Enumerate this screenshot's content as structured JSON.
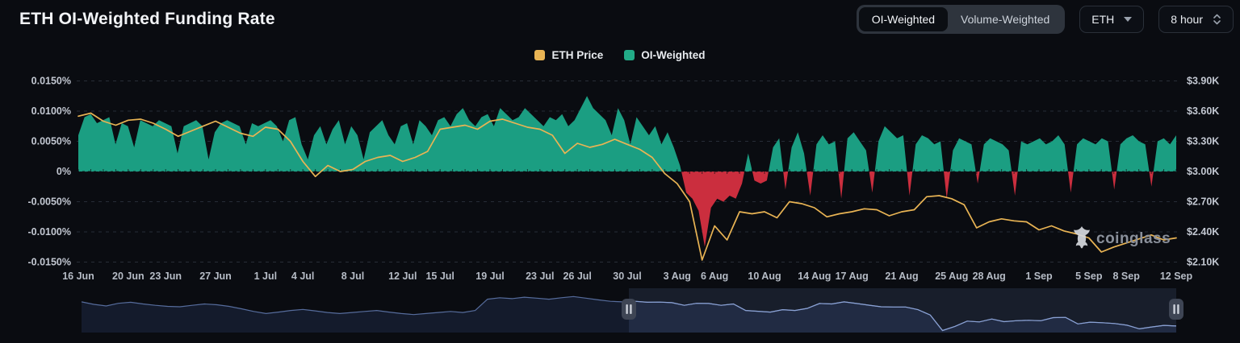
{
  "header": {
    "title": "ETH OI-Weighted Funding Rate"
  },
  "controls": {
    "mode_toggle": {
      "options": [
        "OI-Weighted",
        "Volume-Weighted"
      ],
      "active": "OI-Weighted"
    },
    "symbol_select": {
      "value": "ETH"
    },
    "interval_select": {
      "value": "8 hour"
    }
  },
  "legend": [
    {
      "label": "ETH Price",
      "color": "#e9b454"
    },
    {
      "label": "OI-Weighted",
      "color": "#22ab87"
    }
  ],
  "watermark": {
    "text": "coinglass"
  },
  "colors": {
    "background": "#0a0c11",
    "positive": "#1b9e82",
    "negative": "#cb2e3e",
    "price_line": "#e9b454",
    "grid": "#272d37",
    "axis_text": "#c3c8d2",
    "x_axis_text": "#b6bcc6",
    "nav_line": "#566c9c",
    "nav_line_selected": "#8ba2d4",
    "nav_fill": "#141b2c",
    "nav_selection": "rgba(124,154,222,0.13)",
    "handle": "#3e4554",
    "handle_bars": "#ccd1da",
    "watermark_text": "#8a909b",
    "watermark_logo": "#d7dade"
  },
  "chart_data": {
    "type": "area",
    "title": "ETH OI-Weighted Funding Rate",
    "x_start": "16 Jun",
    "x_end": "12 Sep",
    "x_days_span": 88,
    "x_ticks": [
      {
        "label": "16 Jun",
        "day": 0
      },
      {
        "label": "20 Jun",
        "day": 4
      },
      {
        "label": "23 Jun",
        "day": 7
      },
      {
        "label": "27 Jun",
        "day": 11
      },
      {
        "label": "1 Jul",
        "day": 15
      },
      {
        "label": "4 Jul",
        "day": 18
      },
      {
        "label": "8 Jul",
        "day": 22
      },
      {
        "label": "12 Jul",
        "day": 26
      },
      {
        "label": "15 Jul",
        "day": 29
      },
      {
        "label": "19 Jul",
        "day": 33
      },
      {
        "label": "23 Jul",
        "day": 37
      },
      {
        "label": "26 Jul",
        "day": 40
      },
      {
        "label": "30 Jul",
        "day": 44
      },
      {
        "label": "3 Aug",
        "day": 48
      },
      {
        "label": "6 Aug",
        "day": 51
      },
      {
        "label": "10 Aug",
        "day": 55
      },
      {
        "label": "14 Aug",
        "day": 59
      },
      {
        "label": "17 Aug",
        "day": 62
      },
      {
        "label": "21 Aug",
        "day": 66
      },
      {
        "label": "25 Aug",
        "day": 70
      },
      {
        "label": "28 Aug",
        "day": 73
      },
      {
        "label": "1 Sep",
        "day": 77
      },
      {
        "label": "5 Sep",
        "day": 81
      },
      {
        "label": "8 Sep",
        "day": 84
      },
      {
        "label": "12 Sep",
        "day": 88
      }
    ],
    "y_left": {
      "title": "Funding Rate",
      "unit": "%",
      "tick_labels": [
        "0.0150%",
        "0.0100%",
        "0.0050%",
        "0%",
        "-0.0050%",
        "-0.0100%",
        "-0.0150%"
      ],
      "tick_values": [
        0.015,
        0.01,
        0.005,
        0,
        -0.005,
        -0.01,
        -0.015
      ],
      "range": [
        -0.0165,
        0.0165
      ]
    },
    "y_right": {
      "title": "ETH Price",
      "unit": "$K",
      "tick_labels": [
        "$3.90K",
        "$3.60K",
        "$3.30K",
        "$3.00K",
        "$2.70K",
        "$2.40K",
        "$2.10K"
      ],
      "tick_values": [
        3.9,
        3.6,
        3.3,
        3.0,
        2.7,
        2.4,
        2.1
      ],
      "range": [
        2.01,
        3.99
      ]
    },
    "grid": "dashed-horizontal",
    "legend_position": "top-center",
    "series": [
      {
        "name": "OI-Weighted",
        "type": "area",
        "unit": "%",
        "points_per_day": 2,
        "color_positive": "#1b9e82",
        "color_negative": "#cb2e3e",
        "values": [
          0.006,
          0.009,
          0.0095,
          0.008,
          0.0085,
          0.009,
          0.0045,
          0.008,
          0.0075,
          0.004,
          0.0085,
          0.008,
          0.0075,
          0.0085,
          0.008,
          0.0075,
          0.003,
          0.0075,
          0.008,
          0.0085,
          0.0075,
          0.002,
          0.0065,
          0.008,
          0.0085,
          0.008,
          0.0075,
          0.0045,
          0.008,
          0.0075,
          0.008,
          0.0085,
          0.0075,
          0.005,
          0.0085,
          0.009,
          0.0045,
          0.002,
          0.006,
          0.0075,
          0.0045,
          0.007,
          0.0085,
          0.0045,
          0.0075,
          0.006,
          0.002,
          0.0065,
          0.0075,
          0.0085,
          0.006,
          0.0045,
          0.0075,
          0.008,
          0.0045,
          0.0085,
          0.0075,
          0.006,
          0.0085,
          0.009,
          0.0075,
          0.0095,
          0.0105,
          0.0085,
          0.0075,
          0.009,
          0.0095,
          0.0075,
          0.0105,
          0.0095,
          0.0085,
          0.009,
          0.0105,
          0.0095,
          0.0085,
          0.0075,
          0.009,
          0.0085,
          0.0095,
          0.0075,
          0.0085,
          0.0105,
          0.0125,
          0.0105,
          0.0095,
          0.0085,
          0.006,
          0.0105,
          0.0085,
          0.0045,
          0.009,
          0.0075,
          0.006,
          0.0075,
          0.0045,
          0.0065,
          0.004,
          0.001,
          -0.0035,
          -0.0045,
          -0.0065,
          -0.0125,
          -0.006,
          -0.0045,
          -0.005,
          -0.004,
          -0.0045,
          -0.002,
          0.003,
          -0.0015,
          -0.002,
          -0.0015,
          0.004,
          0.0055,
          -0.003,
          0.004,
          0.0065,
          0.003,
          -0.004,
          0.0045,
          0.006,
          0.0045,
          0.005,
          -0.0045,
          0.0055,
          0.0065,
          0.005,
          0.0035,
          -0.0035,
          0.005,
          0.0075,
          0.0065,
          0.0055,
          0.006,
          -0.004,
          0.0045,
          0.006,
          0.0055,
          0.0045,
          0.005,
          -0.0045,
          0.0035,
          0.0055,
          0.005,
          0.0045,
          -0.002,
          0.0045,
          0.0055,
          0.005,
          0.0045,
          0.0035,
          -0.004,
          0.005,
          0.0045,
          0.005,
          0.0055,
          0.0045,
          0.005,
          0.006,
          0.0045,
          -0.0035,
          0.0045,
          0.0055,
          0.005,
          0.0045,
          0.0055,
          0.005,
          -0.003,
          0.0045,
          0.0055,
          0.006,
          0.005,
          0.0045,
          -0.0025,
          0.005,
          0.0055,
          0.0045,
          0.006
        ]
      },
      {
        "name": "ETH Price",
        "type": "line",
        "unit": "$K",
        "points_per_day": 1,
        "color": "#e9b454",
        "values": [
          3.55,
          3.58,
          3.5,
          3.46,
          3.51,
          3.52,
          3.48,
          3.42,
          3.35,
          3.4,
          3.45,
          3.5,
          3.44,
          3.38,
          3.35,
          3.44,
          3.42,
          3.3,
          3.1,
          2.95,
          3.06,
          3.0,
          3.02,
          3.1,
          3.14,
          3.16,
          3.1,
          3.14,
          3.2,
          3.42,
          3.44,
          3.46,
          3.42,
          3.5,
          3.52,
          3.48,
          3.44,
          3.42,
          3.36,
          3.18,
          3.28,
          3.24,
          3.27,
          3.32,
          3.27,
          3.22,
          3.14,
          2.98,
          2.88,
          2.7,
          2.12,
          2.46,
          2.32,
          2.6,
          2.58,
          2.6,
          2.54,
          2.7,
          2.68,
          2.64,
          2.55,
          2.58,
          2.6,
          2.63,
          2.62,
          2.56,
          2.6,
          2.62,
          2.75,
          2.76,
          2.73,
          2.67,
          2.44,
          2.5,
          2.53,
          2.51,
          2.5,
          2.42,
          2.46,
          2.41,
          2.38,
          2.34,
          2.2,
          2.25,
          2.29,
          2.33,
          2.37,
          2.32,
          2.34
        ]
      }
    ],
    "navigator": {
      "description": "mini price history brush, right half selected",
      "selection_start_frac": 0.5,
      "selection_end_frac": 1.0,
      "values": [
        3.52,
        3.4,
        3.32,
        3.45,
        3.5,
        3.42,
        3.35,
        3.3,
        3.28,
        3.35,
        3.42,
        3.38,
        3.3,
        3.18,
        3.05,
        2.95,
        3.02,
        3.1,
        3.15,
        3.08,
        3.0,
        2.95,
        3.0,
        3.05,
        3.1,
        3.02,
        2.95,
        2.9,
        2.95,
        3.0,
        3.05,
        3.0,
        3.1,
        3.65,
        3.72,
        3.68,
        3.75,
        3.7,
        3.65,
        3.72,
        3.78,
        3.7,
        3.62,
        3.55,
        3.52,
        3.55,
        3.5,
        3.51,
        3.48,
        3.35,
        3.45,
        3.44,
        3.35,
        3.42,
        3.1,
        3.06,
        3.02,
        3.14,
        3.1,
        3.2,
        3.44,
        3.42,
        3.52,
        3.44,
        3.36,
        3.28,
        3.27,
        3.27,
        3.14,
        2.88,
        2.12,
        2.32,
        2.58,
        2.54,
        2.68,
        2.55,
        2.6,
        2.62,
        2.6,
        2.75,
        2.76,
        2.44,
        2.53,
        2.5,
        2.46,
        2.38,
        2.2,
        2.29,
        2.37,
        2.34
      ]
    }
  }
}
